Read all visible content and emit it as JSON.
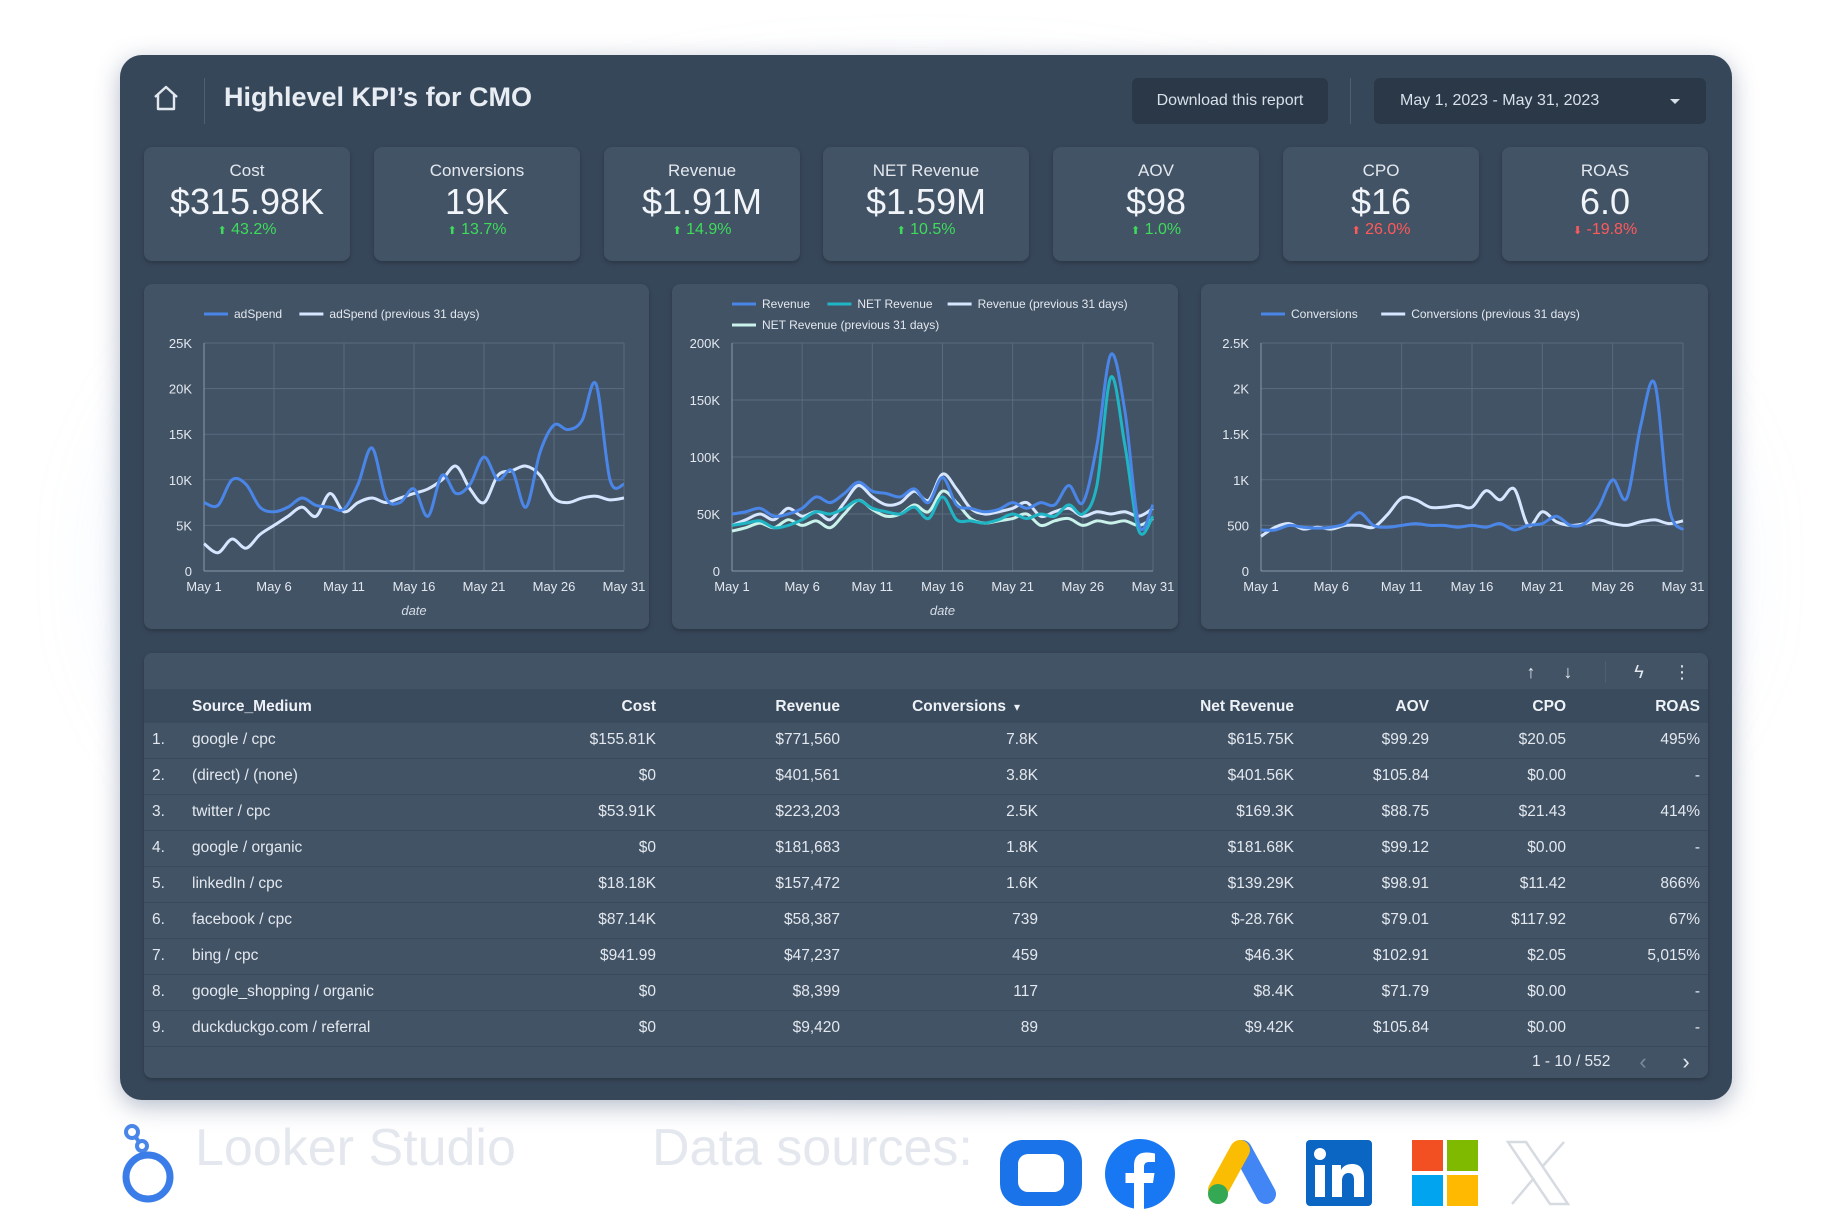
{
  "header": {
    "title": "Highlevel KPI’s for CMO",
    "download_label": "Download this report",
    "date_range": "May 1, 2023 - May 31, 2023"
  },
  "kpis": [
    {
      "label": "Cost",
      "value": "$315.98K",
      "change": "43.2%",
      "direction": "up"
    },
    {
      "label": "Conversions",
      "value": "19K",
      "change": "13.7%",
      "direction": "up"
    },
    {
      "label": "Revenue",
      "value": "$1.91M",
      "change": "14.9%",
      "direction": "up"
    },
    {
      "label": "NET Revenue",
      "value": "$1.59M",
      "change": "10.5%",
      "direction": "up"
    },
    {
      "label": "AOV",
      "value": "$98",
      "change": "1.0%",
      "direction": "up"
    },
    {
      "label": "CPO",
      "value": "$16",
      "change": "26.0%",
      "direction": "up-bad"
    },
    {
      "label": "ROAS",
      "value": "6.0",
      "change": "-19.8%",
      "direction": "down"
    }
  ],
  "colors": {
    "series_primary": "#4a86e8",
    "series_teal": "#1fb5c4",
    "series_light": "#d6e6ff",
    "series_pale": "#c9f2ea",
    "up": "#3ddc5a",
    "down": "#ff5a5a"
  },
  "chart_data": [
    {
      "type": "line",
      "x": [
        "May 1",
        "May 2",
        "May 3",
        "May 4",
        "May 5",
        "May 6",
        "May 7",
        "May 8",
        "May 9",
        "May 10",
        "May 11",
        "May 12",
        "May 13",
        "May 14",
        "May 15",
        "May 16",
        "May 17",
        "May 18",
        "May 19",
        "May 20",
        "May 21",
        "May 22",
        "May 23",
        "May 24",
        "May 25",
        "May 26",
        "May 27",
        "May 28",
        "May 29",
        "May 30",
        "May 31"
      ],
      "x_ticks": [
        "May 1",
        "May 6",
        "May 11",
        "May 16",
        "May 21",
        "May 26",
        "May 31"
      ],
      "xlabel": "date",
      "ylim": [
        0,
        25000
      ],
      "y_ticks": [
        "0",
        "5K",
        "10K",
        "15K",
        "20K",
        "25K"
      ],
      "legend_position": "top",
      "series": [
        {
          "name": "adSpend",
          "color": "#4a86e8",
          "values": [
            7500,
            7200,
            10000,
            9500,
            7000,
            6500,
            7000,
            8000,
            7200,
            7000,
            6800,
            9500,
            13500,
            8000,
            7500,
            9000,
            6000,
            10500,
            8500,
            9500,
            12500,
            10000,
            11000,
            7000,
            13000,
            16000,
            15500,
            16500,
            20500,
            10000,
            9500
          ]
        },
        {
          "name": "adSpend (previous 31 days)",
          "color": "#d6e6ff",
          "values": [
            3000,
            2000,
            3500,
            2500,
            4000,
            5000,
            6000,
            7000,
            6000,
            8500,
            6500,
            7500,
            8000,
            7500,
            8000,
            8500,
            9000,
            10000,
            11500,
            9000,
            7500,
            10500,
            11000,
            11500,
            10500,
            8000,
            7500,
            8000,
            8200,
            7800,
            8000
          ]
        }
      ]
    },
    {
      "type": "line",
      "x": [
        "May 1",
        "May 2",
        "May 3",
        "May 4",
        "May 5",
        "May 6",
        "May 7",
        "May 8",
        "May 9",
        "May 10",
        "May 11",
        "May 12",
        "May 13",
        "May 14",
        "May 15",
        "May 16",
        "May 17",
        "May 18",
        "May 19",
        "May 20",
        "May 21",
        "May 22",
        "May 23",
        "May 24",
        "May 25",
        "May 26",
        "May 27",
        "May 28",
        "May 29",
        "May 30",
        "May 31"
      ],
      "x_ticks": [
        "May 1",
        "May 6",
        "May 11",
        "May 16",
        "May 21",
        "May 26",
        "May 31"
      ],
      "xlabel": "date",
      "ylim": [
        0,
        200000
      ],
      "y_ticks": [
        "0",
        "50K",
        "100K",
        "150K",
        "200K"
      ],
      "legend_position": "top",
      "series": [
        {
          "name": "Revenue",
          "color": "#4a86e8",
          "values": [
            50000,
            52000,
            55000,
            48000,
            50000,
            55000,
            65000,
            60000,
            68000,
            78000,
            70000,
            68000,
            65000,
            72000,
            60000,
            82000,
            58000,
            55000,
            52000,
            54000,
            60000,
            55000,
            60000,
            58000,
            75000,
            60000,
            110000,
            190000,
            140000,
            40000,
            58000
          ]
        },
        {
          "name": "NET Revenue",
          "color": "#1fb5c4",
          "values": [
            40000,
            42000,
            44000,
            38000,
            40000,
            45000,
            52000,
            50000,
            55000,
            62000,
            55000,
            52000,
            50000,
            56000,
            46000,
            65000,
            45000,
            44000,
            42000,
            45000,
            50000,
            46000,
            50000,
            48000,
            58000,
            50000,
            75000,
            170000,
            110000,
            35000,
            48000
          ]
        },
        {
          "name": "Revenue (previous 31 days)",
          "color": "#d6e6ff",
          "values": [
            40000,
            45000,
            50000,
            45000,
            55000,
            48000,
            52000,
            45000,
            60000,
            75000,
            65000,
            58000,
            60000,
            70000,
            62000,
            85000,
            72000,
            55000,
            50000,
            52000,
            55000,
            60000,
            48000,
            52000,
            55000,
            48000,
            52000,
            50000,
            52000,
            48000,
            55000
          ]
        },
        {
          "name": "NET Revenue (previous 31 days)",
          "color": "#c9f2ea",
          "values": [
            35000,
            38000,
            42000,
            38000,
            45000,
            40000,
            44000,
            38000,
            50000,
            62000,
            54000,
            48000,
            50000,
            58000,
            52000,
            70000,
            60000,
            46000,
            42000,
            44000,
            46000,
            50000,
            40000,
            44000,
            46000,
            40000,
            44000,
            42000,
            44000,
            40000,
            46000
          ]
        }
      ]
    },
    {
      "type": "line",
      "x": [
        "May 1",
        "May 2",
        "May 3",
        "May 4",
        "May 5",
        "May 6",
        "May 7",
        "May 8",
        "May 9",
        "May 10",
        "May 11",
        "May 12",
        "May 13",
        "May 14",
        "May 15",
        "May 16",
        "May 17",
        "May 18",
        "May 19",
        "May 20",
        "May 21",
        "May 22",
        "May 23",
        "May 24",
        "May 25",
        "May 26",
        "May 27",
        "May 28",
        "May 29",
        "May 30",
        "May 31"
      ],
      "x_ticks": [
        "May 1",
        "May 6",
        "May 11",
        "May 16",
        "May 21",
        "May 26",
        "May 31"
      ],
      "ylim": [
        0,
        2500
      ],
      "y_ticks": [
        "0",
        "500",
        "1K",
        "1.5K",
        "2K",
        "2.5K"
      ],
      "legend_position": "top",
      "series": [
        {
          "name": "Conversions",
          "color": "#4a86e8",
          "values": [
            450,
            450,
            500,
            480,
            470,
            480,
            520,
            640,
            500,
            480,
            500,
            520,
            500,
            500,
            480,
            500,
            480,
            520,
            450,
            500,
            520,
            600,
            500,
            520,
            700,
            1000,
            800,
            1600,
            2050,
            700,
            450
          ]
        },
        {
          "name": "Conversions (previous 31 days)",
          "color": "#d6e6ff",
          "values": [
            380,
            480,
            520,
            460,
            480,
            460,
            500,
            500,
            480,
            620,
            800,
            780,
            700,
            700,
            720,
            700,
            880,
            780,
            900,
            500,
            650,
            540,
            500,
            520,
            560,
            520,
            500,
            540,
            560,
            520,
            550
          ]
        }
      ]
    }
  ],
  "table": {
    "headers": [
      "Source_Medium",
      "Cost",
      "Revenue",
      "Conversions",
      "Net Revenue",
      "AOV",
      "CPO",
      "ROAS"
    ],
    "sort_indicator": "▾",
    "rows": [
      [
        "1.",
        "google / cpc",
        "$155.81K",
        "$771,560",
        "7.8K",
        "$615.75K",
        "$99.29",
        "$20.05",
        "495%"
      ],
      [
        "2.",
        "(direct) / (none)",
        "$0",
        "$401,561",
        "3.8K",
        "$401.56K",
        "$105.84",
        "$0.00",
        "-"
      ],
      [
        "3.",
        "twitter / cpc",
        "$53.91K",
        "$223,203",
        "2.5K",
        "$169.3K",
        "$88.75",
        "$21.43",
        "414%"
      ],
      [
        "4.",
        "google / organic",
        "$0",
        "$181,683",
        "1.8K",
        "$181.68K",
        "$99.12",
        "$0.00",
        "-"
      ],
      [
        "5.",
        "linkedIn / cpc",
        "$18.18K",
        "$157,472",
        "1.6K",
        "$139.29K",
        "$98.91",
        "$11.42",
        "866%"
      ],
      [
        "6.",
        "facebook / cpc",
        "$87.14K",
        "$58,387",
        "739",
        "$-28.76K",
        "$79.01",
        "$117.92",
        "67%"
      ],
      [
        "7.",
        "bing / cpc",
        "$941.99",
        "$47,237",
        "459",
        "$46.3K",
        "$102.91",
        "$2.05",
        "5,015%"
      ],
      [
        "8.",
        "google_shopping / organic",
        "$0",
        "$8,399",
        "117",
        "$8.4K",
        "$71.79",
        "$0.00",
        "-"
      ],
      [
        "9.",
        "duckduckgo.com / referral",
        "$0",
        "$9,420",
        "89",
        "$9.42K",
        "$105.84",
        "$0.00",
        "-"
      ]
    ],
    "pagination": "1 - 10 / 552"
  },
  "footer": {
    "brand": "Looker Studio",
    "sources_label": "Data sources:",
    "source_icons": [
      "looker-studio-icon",
      "facebook-icon",
      "google-ads-icon",
      "linkedin-icon",
      "microsoft-icon",
      "x-icon"
    ]
  }
}
